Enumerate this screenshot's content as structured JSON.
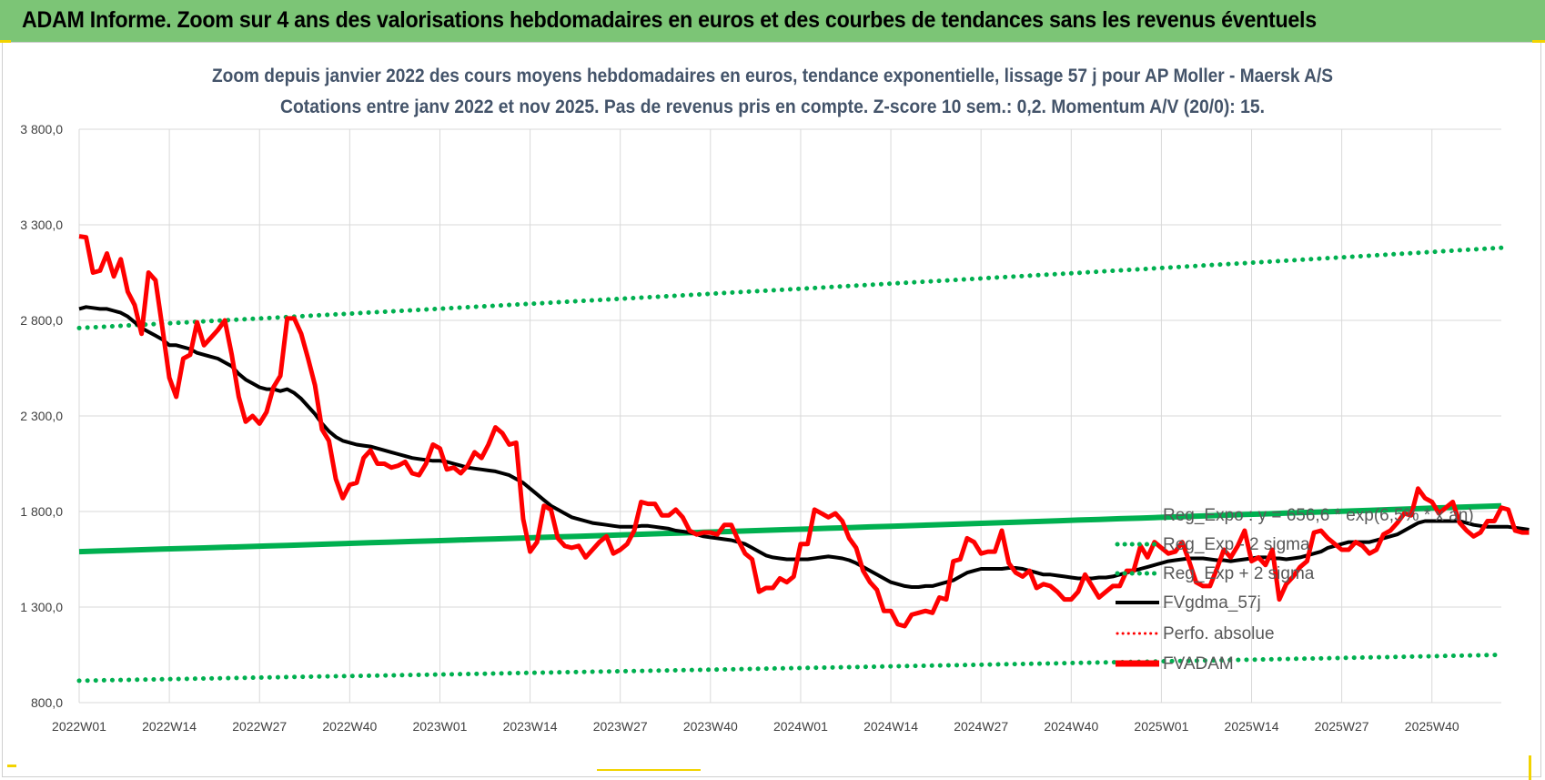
{
  "banner": {
    "title": "ADAM Informe. Zoom sur 4 ans des valorisations hebdomadaires en euros et des courbes de tendances sans les revenus éventuels",
    "background": "#7cc576"
  },
  "chart_data": {
    "type": "line",
    "title": "Zoom depuis janvier 2022 des cours moyens hebdomadaires en euros, tendance exponentielle, lissage 57 j pour AP Moller - Maersk A/S",
    "subtitle": "Cotations entre janv 2022 et nov 2025. Pas de revenus pris en compte. Z-score 10 sem.: 0,2. Momentum A/V (20/0): 15.",
    "xlabel": "",
    "ylabel": "",
    "ylim": [
      800,
      3800
    ],
    "yticks": [
      "800,0",
      "1300,0",
      "1800,0",
      "2300,0",
      "2800,0",
      "3300,0",
      "3800,0"
    ],
    "yticks_display": [
      "800,0",
      "1 300,0",
      "1 800,0",
      "2 300,0",
      "2 800,0",
      "3 300,0",
      "3 800,0"
    ],
    "x_tick_labels": [
      "2022W01",
      "2022W14",
      "2022W27",
      "2022W40",
      "2023W01",
      "2023W14",
      "2023W27",
      "2023W40",
      "2024W01",
      "2024W14",
      "2024W27",
      "2024W40",
      "2025W01",
      "2025W14",
      "2025W27",
      "2025W40"
    ],
    "x_count": 206,
    "grid": true,
    "legend_position": "bottom-right, inside plot area",
    "series": [
      {
        "name": "FVADAM",
        "color": "#ff0000",
        "style": "solid-thick",
        "values": [
          3240,
          3235,
          3050,
          3060,
          3150,
          3030,
          3120,
          2950,
          2880,
          2730,
          3050,
          3010,
          2760,
          2500,
          2400,
          2600,
          2620,
          2790,
          2670,
          2710,
          2750,
          2800,
          2620,
          2400,
          2270,
          2300,
          2260,
          2320,
          2450,
          2510,
          2810,
          2810,
          2730,
          2600,
          2460,
          2230,
          2170,
          1970,
          1870,
          1940,
          1950,
          2080,
          2120,
          2050,
          2050,
          2030,
          2040,
          2060,
          2000,
          1990,
          2050,
          2150,
          2130,
          2020,
          2030,
          2000,
          2040,
          2110,
          2080,
          2150,
          2240,
          2210,
          2150,
          2160,
          1760,
          1590,
          1640,
          1830,
          1810,
          1660,
          1620,
          1610,
          1620,
          1560,
          1600,
          1640,
          1670,
          1580,
          1600,
          1630,
          1700,
          1850,
          1840,
          1840,
          1780,
          1780,
          1810,
          1770,
          1700,
          1680,
          1690,
          1690,
          1680,
          1730,
          1730,
          1650,
          1580,
          1550,
          1380,
          1400,
          1400,
          1450,
          1430,
          1460,
          1630,
          1630,
          1810,
          1790,
          1770,
          1790,
          1750,
          1660,
          1610,
          1490,
          1430,
          1390,
          1280,
          1280,
          1210,
          1200,
          1260,
          1270,
          1280,
          1270,
          1350,
          1340,
          1540,
          1550,
          1660,
          1640,
          1580,
          1590,
          1590,
          1700,
          1530,
          1480,
          1460,
          1490,
          1400,
          1420,
          1410,
          1380,
          1340,
          1340,
          1380,
          1470,
          1410,
          1350,
          1380,
          1410,
          1410,
          1490,
          1490,
          1620,
          1560,
          1640,
          1610,
          1580,
          1590,
          1640,
          1540,
          1430,
          1410,
          1410,
          1500,
          1600,
          1560,
          1620,
          1700,
          1540,
          1560,
          1520,
          1600,
          1340,
          1420,
          1460,
          1510,
          1540,
          1690,
          1700,
          1660,
          1630,
          1600,
          1600,
          1640,
          1620,
          1580,
          1600,
          1680,
          1700,
          1740,
          1790,
          1780,
          1920,
          1870,
          1850,
          1790,
          1820,
          1850,
          1740,
          1700,
          1670,
          1690,
          1750,
          1750,
          1820,
          1810,
          1700,
          1690,
          1690
        ]
      },
      {
        "name": "FVgdma_57j",
        "color": "#000000",
        "style": "solid",
        "values": [
          2860,
          2870,
          2865,
          2860,
          2860,
          2850,
          2840,
          2820,
          2790,
          2760,
          2740,
          2720,
          2700,
          2670,
          2670,
          2660,
          2650,
          2630,
          2620,
          2610,
          2600,
          2580,
          2560,
          2520,
          2490,
          2470,
          2450,
          2440,
          2440,
          2430,
          2440,
          2420,
          2390,
          2350,
          2310,
          2260,
          2220,
          2190,
          2170,
          2160,
          2150,
          2145,
          2140,
          2130,
          2120,
          2110,
          2100,
          2090,
          2080,
          2075,
          2070,
          2065,
          2065,
          2060,
          2050,
          2040,
          2030,
          2025,
          2020,
          2015,
          2010,
          2000,
          1990,
          1970,
          1950,
          1920,
          1890,
          1860,
          1830,
          1810,
          1790,
          1770,
          1760,
          1750,
          1740,
          1735,
          1730,
          1725,
          1720,
          1720,
          1720,
          1725,
          1725,
          1720,
          1715,
          1710,
          1700,
          1695,
          1690,
          1680,
          1670,
          1665,
          1660,
          1655,
          1650,
          1640,
          1630,
          1610,
          1590,
          1570,
          1560,
          1555,
          1550,
          1550,
          1550,
          1550,
          1555,
          1560,
          1565,
          1560,
          1555,
          1545,
          1530,
          1510,
          1490,
          1470,
          1450,
          1430,
          1420,
          1410,
          1405,
          1405,
          1410,
          1410,
          1420,
          1430,
          1440,
          1460,
          1480,
          1490,
          1500,
          1500,
          1500,
          1500,
          1505,
          1505,
          1500,
          1490,
          1480,
          1470,
          1470,
          1465,
          1460,
          1455,
          1450,
          1450,
          1450,
          1455,
          1455,
          1460,
          1470,
          1480,
          1490,
          1500,
          1510,
          1520,
          1530,
          1540,
          1545,
          1550,
          1555,
          1555,
          1555,
          1550,
          1545,
          1545,
          1540,
          1545,
          1550,
          1555,
          1560,
          1560,
          1555,
          1555,
          1550,
          1555,
          1560,
          1570,
          1580,
          1590,
          1610,
          1620,
          1630,
          1640,
          1640,
          1640,
          1640,
          1650,
          1660,
          1670,
          1680,
          1700,
          1720,
          1740,
          1750,
          1750,
          1750,
          1750,
          1750,
          1750,
          1740,
          1730,
          1725,
          1720,
          1720,
          1720,
          1720,
          1715,
          1710,
          1705
        ]
      },
      {
        "name": "Reg_Expo : y = 656,6 * exp(6,5% * x an)",
        "color": "#00b050",
        "style": "solid",
        "start": 1590,
        "end": 1830
      },
      {
        "name": "Reg_Exp - 2 sigma",
        "color": "#00b050",
        "style": "dotted",
        "start": 915,
        "end": 1050
      },
      {
        "name": "Reg_Exp + 2 sigma",
        "color": "#00b050",
        "style": "dotted",
        "start": 2760,
        "end": 3180
      },
      {
        "name": "Perfo. absolue",
        "color": "#ff0000",
        "style": "dotted",
        "values": []
      }
    ]
  }
}
